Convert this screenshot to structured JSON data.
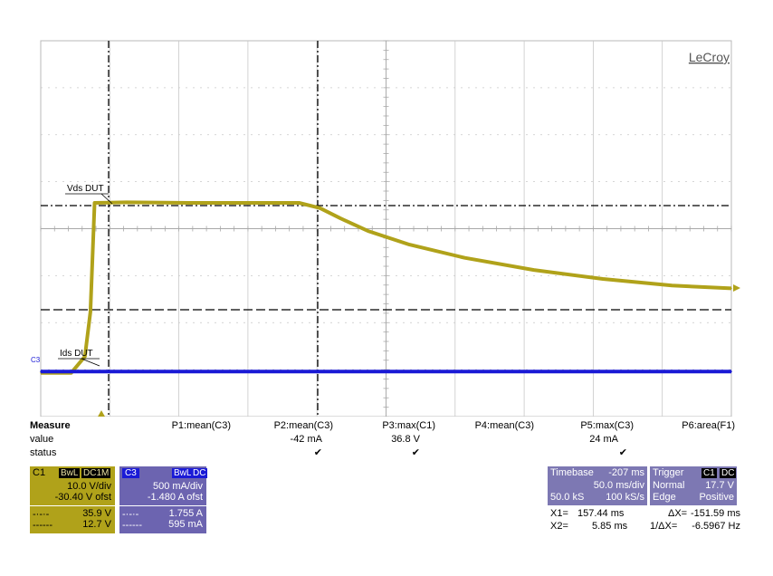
{
  "brand": "LeCroy",
  "chart_data": {
    "type": "line",
    "title": "",
    "xlabel": "",
    "ylabel": "",
    "time_axis": {
      "unit": "ms",
      "divisions": 10,
      "per_div": 50.0,
      "start": -207
    },
    "series": [
      {
        "name": "C1",
        "label": "Vds DUT",
        "unit": "V",
        "color": "#b0a21a",
        "x": [
          -207,
          -197,
          -185,
          -175,
          -171,
          -168,
          -145,
          -100,
          -50,
          -20,
          -5,
          10,
          30,
          60,
          100,
          150,
          200,
          250,
          293
        ],
        "values": [
          -0.3,
          -0.3,
          -0.3,
          3.2,
          12.7,
          35.9,
          36.0,
          35.9,
          35.9,
          35.9,
          34.8,
          32.6,
          29.9,
          27.0,
          24.2,
          21.6,
          19.7,
          18.3,
          17.7
        ]
      },
      {
        "name": "C3",
        "label": "Ids DUT",
        "unit": "A",
        "color": "#1a1ad6",
        "x": [
          -207,
          293
        ],
        "values": [
          -0.04,
          -0.04
        ]
      }
    ],
    "markers": {
      "X1": "157.44 ms",
      "X2": "5.85 ms",
      "dX": "-151.59 ms",
      "inv_dX": "-6.5967 Hz"
    }
  },
  "measure": {
    "title": "Measure",
    "row_labels": [
      "value",
      "status"
    ],
    "params": [
      {
        "name": "P1:mean(C3)",
        "value": "",
        "status": ""
      },
      {
        "name": "P2:mean(C3)",
        "value": "-42 mA",
        "status": "✔"
      },
      {
        "name": "P3:max(C1)",
        "value": "36.8 V",
        "status": "✔"
      },
      {
        "name": "P4:mean(C3)",
        "value": "",
        "status": ""
      },
      {
        "name": "P5:max(C3)",
        "value": "24 mA",
        "status": "✔"
      },
      {
        "name": "P6:area(F1)",
        "value": "",
        "status": ""
      }
    ]
  },
  "channels": {
    "c1": {
      "name": "C1",
      "bw": "BwL",
      "coupling": "DC1M",
      "vdiv": "10.0 V/div",
      "offset": "-30.40 V ofst",
      "cursor1": "35.9 V",
      "cursor2": "12.7 V",
      "color": "#b0a21a"
    },
    "c3": {
      "name": "C3",
      "bw": "BwL",
      "coupling": "DC",
      "vdiv": "500 mA/div",
      "offset": "-1.480 A ofst",
      "cursor1": "1.755 A",
      "cursor2": "595 mA",
      "color": "#6c64b0"
    }
  },
  "timebase": {
    "label": "Timebase",
    "delay": "-207 ms",
    "div": "50.0 ms/div",
    "samples": "50.0 kS",
    "rate": "100 kS/s"
  },
  "trigger": {
    "label": "Trigger",
    "source": "C1",
    "coupling": "DC",
    "mode": "Normal",
    "level": "17.7 V",
    "type": "Edge",
    "slope": "Positive"
  },
  "cursors": {
    "x1_label": "X1=",
    "x1": "157.44 ms",
    "x2_label": "X2=",
    "x2": "5.85 ms",
    "dx_label": "ΔX=",
    "dx": "-151.59 ms",
    "idx_label": "1/ΔX=",
    "idx": "-6.5967 Hz"
  }
}
